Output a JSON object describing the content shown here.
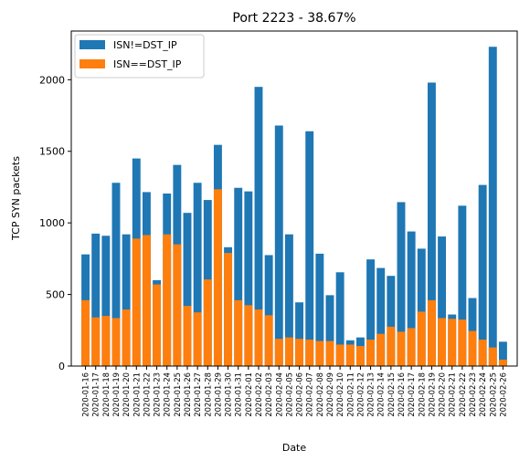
{
  "chart_data": {
    "type": "bar",
    "stacked": true,
    "title": "Port 2223 - 38.67%",
    "xlabel": "Date",
    "ylabel": "TCP SYN packets",
    "ylim": [
      0,
      2340
    ],
    "yticks": [
      0,
      500,
      1000,
      1500,
      2000
    ],
    "legend": "top-left",
    "grid": false,
    "categories": [
      "2020-01-16",
      "2020-01-17",
      "2020-01-18",
      "2020-01-19",
      "2020-01-20",
      "2020-01-21",
      "2020-01-22",
      "2020-01-23",
      "2020-01-24",
      "2020-01-25",
      "2020-01-26",
      "2020-01-27",
      "2020-01-28",
      "2020-01-29",
      "2020-01-30",
      "2020-01-31",
      "2020-02-01",
      "2020-02-02",
      "2020-02-03",
      "2020-02-04",
      "2020-02-05",
      "2020-02-06",
      "2020-02-07",
      "2020-02-08",
      "2020-02-09",
      "2020-02-10",
      "2020-02-11",
      "2020-02-12",
      "2020-02-13",
      "2020-02-14",
      "2020-02-15",
      "2020-02-16",
      "2020-02-17",
      "2020-02-18",
      "2020-02-19",
      "2020-02-20",
      "2020-02-21",
      "2020-02-22",
      "2020-02-23",
      "2020-02-24",
      "2020-02-25",
      "2020-02-26"
    ],
    "series": [
      {
        "name": "ISN!=DST_IP",
        "color": "#1f77b4",
        "total_values": [
          780,
          925,
          910,
          1280,
          920,
          1450,
          1215,
          600,
          1205,
          1405,
          1070,
          1280,
          1160,
          1545,
          830,
          1245,
          1220,
          1950,
          775,
          1680,
          920,
          445,
          1640,
          785,
          495,
          655,
          180,
          200,
          745,
          685,
          630,
          1145,
          940,
          820,
          1980,
          905,
          360,
          1120,
          475,
          1265,
          2230,
          170
        ]
      },
      {
        "name": "ISN==DST_IP",
        "color": "#ff7f0e",
        "values": [
          460,
          340,
          350,
          335,
          395,
          890,
          915,
          570,
          920,
          850,
          420,
          375,
          605,
          1235,
          790,
          460,
          425,
          395,
          355,
          190,
          200,
          190,
          185,
          175,
          175,
          150,
          150,
          140,
          185,
          225,
          275,
          240,
          265,
          380,
          460,
          335,
          330,
          325,
          245,
          185,
          130,
          45
        ]
      }
    ]
  }
}
